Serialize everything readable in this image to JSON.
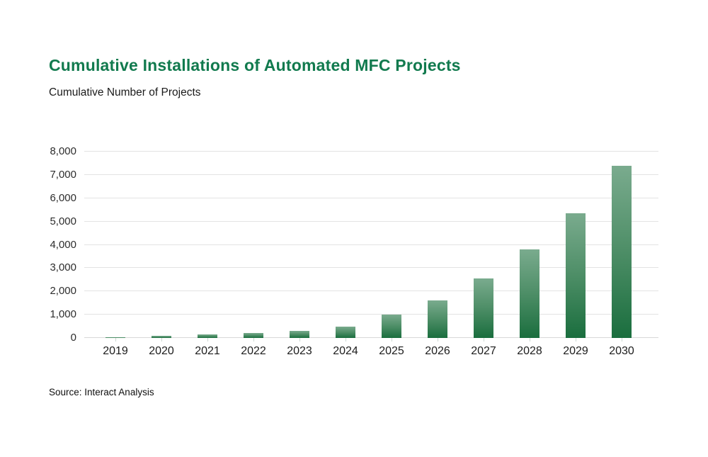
{
  "header": {
    "title": "Cumulative Installations of Automated MFC Projects",
    "subtitle": "Cumulative Number of Projects"
  },
  "source_note": "Source: Interact Analysis",
  "chart_data": {
    "type": "bar",
    "title": "Cumulative Installations of Automated MFC Projects",
    "subtitle": "Cumulative Number of Projects",
    "categories": [
      "2019",
      "2020",
      "2021",
      "2022",
      "2023",
      "2024",
      "2025",
      "2026",
      "2027",
      "2028",
      "2029",
      "2030"
    ],
    "values": [
      40,
      80,
      140,
      200,
      300,
      500,
      1000,
      1600,
      2550,
      3800,
      5350,
      7400
    ],
    "xlabel": "",
    "ylabel": "Cumulative Number of Projects",
    "ylim": [
      0,
      8000
    ],
    "ytick_interval": 1000,
    "ytick_labels": [
      "0",
      "1,000",
      "2,000",
      "3,000",
      "4,000",
      "5,000",
      "6,000",
      "7,000",
      "8,000"
    ],
    "grid": "horizontal",
    "legend": "none",
    "source": "Source: Interact Analysis",
    "colors": {
      "title": "#117a4e",
      "bar_gradient_top": "#7aab8e",
      "bar_gradient_bottom": "#1a6e3e",
      "gridline": "#e3e3e3",
      "axis_baseline": "#d8d8d8",
      "tick": "#ccd8d1",
      "label_text": "#2d2d2d"
    }
  }
}
